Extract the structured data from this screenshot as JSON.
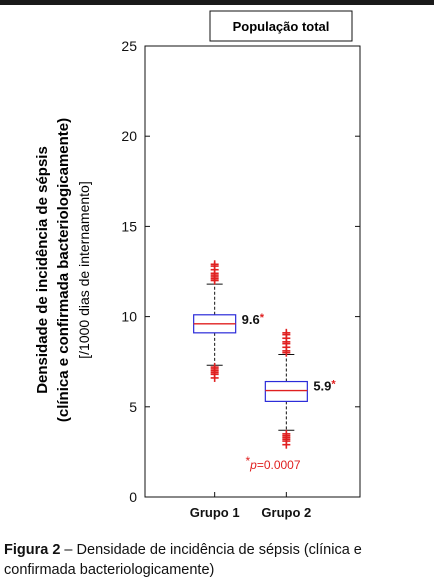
{
  "chart_data": {
    "type": "boxplot",
    "title": "População total",
    "ylabel_lines": [
      "Densidade de incidência de sépsis",
      "(clínica e confirmada bacteriologicamente)",
      "[/1000 dias de internamento]"
    ],
    "ylim": [
      0,
      25
    ],
    "yticks": [
      0,
      5,
      10,
      15,
      20,
      25
    ],
    "categories": [
      "Grupo 1",
      "Grupo 2"
    ],
    "boxes": [
      {
        "category": "Grupo 1",
        "median": 9.6,
        "q1": 9.1,
        "q3": 10.1,
        "whisker_low": 7.3,
        "whisker_high": 11.8,
        "outliers": [
          6.6,
          6.8,
          6.9,
          7.0,
          7.1,
          7.2,
          12.0,
          12.1,
          12.2,
          12.3,
          12.4,
          12.6,
          12.8,
          12.9
        ],
        "label": "9.6",
        "label_mark": "*"
      },
      {
        "category": "Grupo 2",
        "median": 5.9,
        "q1": 5.3,
        "q3": 6.4,
        "whisker_low": 3.7,
        "whisker_high": 7.9,
        "outliers": [
          2.9,
          3.1,
          3.2,
          3.3,
          3.4,
          3.5,
          8.0,
          8.1,
          8.3,
          8.5,
          8.6,
          8.8,
          9.0,
          9.1
        ],
        "label": "5.9",
        "label_mark": "*"
      }
    ],
    "annotation": {
      "mark": "*",
      "var": "p",
      "rest": "=0.0007"
    },
    "grid": false
  },
  "caption": {
    "label": "Figura 2",
    "separator": " – ",
    "text": "Densidade de incidência de sépsis (clínica e confirmada bacteriologicamente)"
  },
  "colors": {
    "box": "#2b2bd9",
    "median": "#e02020",
    "outlier": "#e02020",
    "axis": "#111111"
  }
}
